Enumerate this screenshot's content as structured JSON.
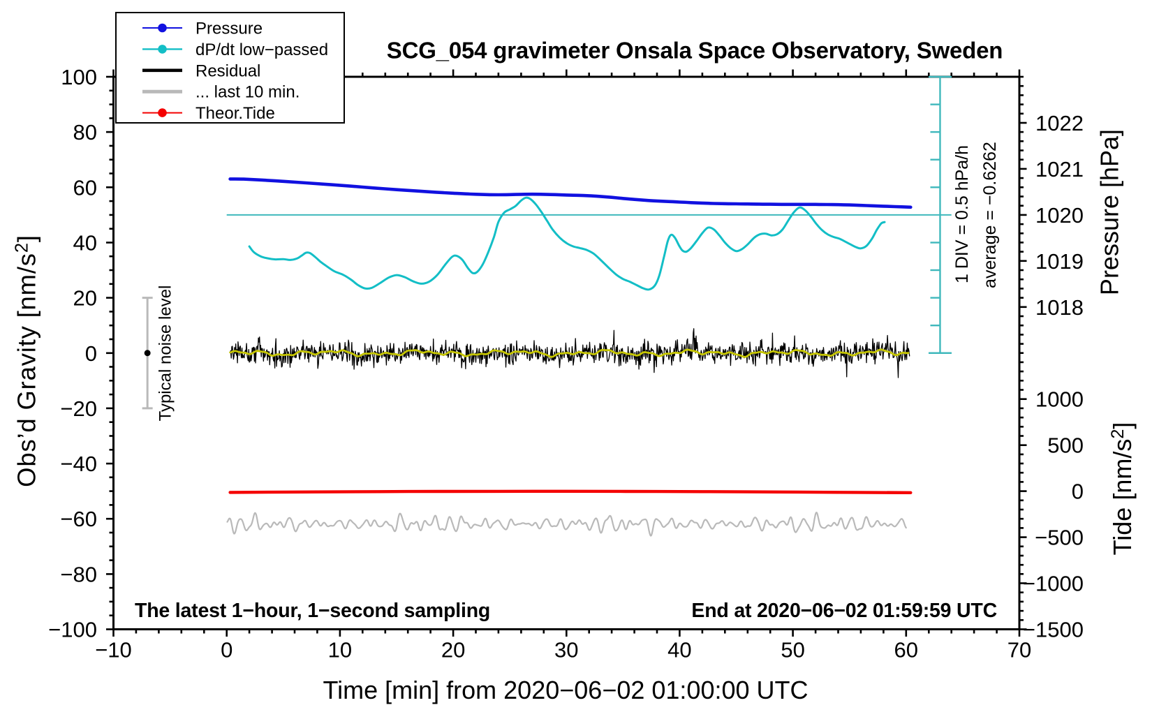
{
  "title": "SCG_054 gravimeter Onsala Space Observatory, Sweden",
  "chart_data": {
    "type": "line",
    "title": "SCG_054 gravimeter Onsala Space Observatory, Sweden",
    "xlabel": "Time [min] from 2020−06−02 01:00:00 UTC",
    "ylabel_left": "Obs’d Gravity [nm/s²]",
    "ylabel_right_top": "Pressure [hPa]",
    "ylabel_right_bottom": "Tide [nm/s²]",
    "x_axis": {
      "min": -10,
      "max": 70,
      "major": 10,
      "minor": 2,
      "tick_values": [
        -10,
        0,
        10,
        20,
        30,
        40,
        50,
        60,
        70
      ],
      "tick_labels": [
        "−10",
        "0",
        "10",
        "20",
        "30",
        "40",
        "50",
        "60",
        "70"
      ]
    },
    "y_axis": {
      "min": -100,
      "max": 100,
      "major": 20,
      "minor": 5,
      "tick_values": [
        100,
        80,
        60,
        40,
        20,
        0,
        -20,
        -40,
        -60,
        -80,
        -100
      ],
      "tick_labels": [
        "100",
        "80",
        "60",
        "40",
        "20",
        "0",
        "−20",
        "−40",
        "−60",
        "−80",
        "−100"
      ]
    },
    "pressure_axis": {
      "anchor_pressure": 1020,
      "anchor_gravity": 50,
      "gravity_per_hpa": 16.6667,
      "minor_gravity_step": 3.33333,
      "tick_values": [
        1022,
        1021,
        1020,
        1019,
        1018
      ],
      "tick_labels": [
        "1022",
        "1021",
        "1020",
        "1019",
        "1018"
      ]
    },
    "tide_axis": {
      "anchor_tide": 0,
      "anchor_gravity": -50,
      "gravity_per_500": 16.6667,
      "tick_values": [
        1000,
        500,
        0,
        -500,
        -1000,
        -1500
      ],
      "tick_labels": [
        "1000",
        "500",
        "0",
        "−500",
        "−1000",
        "−1500"
      ]
    },
    "annotations": {
      "sampling_note": "The latest 1−hour, 1−second sampling",
      "end_time": "End at 2020−06−02 01:59:59 UTC",
      "div_scale": "1 DIV = 0.5 hPa/h",
      "average": "average = −0.6262",
      "noise_label": "Typical noise level"
    },
    "series": {
      "pressure": {
        "name": "Pressure",
        "color": "#1111e0",
        "width": 4.6,
        "points": [
          [
            0.3,
            63.0
          ],
          [
            1.5,
            62.95
          ],
          [
            3,
            62.65
          ],
          [
            5,
            62.15
          ],
          [
            7,
            61.6
          ],
          [
            9,
            61.0
          ],
          [
            11,
            60.4
          ],
          [
            13,
            59.75
          ],
          [
            15,
            59.15
          ],
          [
            17,
            58.6
          ],
          [
            18.5,
            58.2
          ],
          [
            20,
            57.85
          ],
          [
            21.5,
            57.55
          ],
          [
            23,
            57.35
          ],
          [
            24,
            57.3
          ],
          [
            25,
            57.35
          ],
          [
            26,
            57.45
          ],
          [
            27,
            57.5
          ],
          [
            28,
            57.45
          ],
          [
            29,
            57.35
          ],
          [
            30,
            57.2
          ],
          [
            31,
            57.1
          ],
          [
            32,
            56.95
          ],
          [
            33,
            56.7
          ],
          [
            34,
            56.35
          ],
          [
            35,
            55.95
          ],
          [
            36,
            55.6
          ],
          [
            37,
            55.3
          ],
          [
            38,
            55.05
          ],
          [
            39,
            54.85
          ],
          [
            40,
            54.65
          ],
          [
            41,
            54.45
          ],
          [
            42,
            54.3
          ],
          [
            43,
            54.15
          ],
          [
            44,
            54.05
          ],
          [
            45,
            54.0
          ],
          [
            46,
            53.95
          ],
          [
            47,
            53.9
          ],
          [
            48,
            53.85
          ],
          [
            49,
            53.82
          ],
          [
            50,
            53.8
          ],
          [
            51,
            53.8
          ],
          [
            52,
            53.8
          ],
          [
            53,
            53.75
          ],
          [
            54,
            53.7
          ],
          [
            55,
            53.6
          ],
          [
            56,
            53.45
          ],
          [
            57,
            53.3
          ],
          [
            58,
            53.15
          ],
          [
            59,
            53.0
          ],
          [
            60.4,
            52.8
          ]
        ]
      },
      "dpdt": {
        "name": "dP/dt low−passed",
        "color": "#13bec6",
        "width": 3,
        "points": [
          [
            2.0,
            38.6
          ],
          [
            2.4,
            36.5
          ],
          [
            3.0,
            35.0
          ],
          [
            3.6,
            34.3
          ],
          [
            4.3,
            33.9
          ],
          [
            5.0,
            34.0
          ],
          [
            5.6,
            33.7
          ],
          [
            6.2,
            34.2
          ],
          [
            6.6,
            35.2
          ],
          [
            7.0,
            36.3
          ],
          [
            7.35,
            36.2
          ],
          [
            7.8,
            34.8
          ],
          [
            8.3,
            33.0
          ],
          [
            8.7,
            31.8
          ],
          [
            9.5,
            29.6
          ],
          [
            10.3,
            28.3
          ],
          [
            11.0,
            26.5
          ],
          [
            11.6,
            24.6
          ],
          [
            12.2,
            23.4
          ],
          [
            12.8,
            23.6
          ],
          [
            13.5,
            25.2
          ],
          [
            14.3,
            27.3
          ],
          [
            15.0,
            28.2
          ],
          [
            15.7,
            27.5
          ],
          [
            16.5,
            25.9
          ],
          [
            17.2,
            25.1
          ],
          [
            17.9,
            25.9
          ],
          [
            18.6,
            28.3
          ],
          [
            19.3,
            32.0
          ],
          [
            19.9,
            34.8
          ],
          [
            20.3,
            35.2
          ],
          [
            20.8,
            33.8
          ],
          [
            21.3,
            30.8
          ],
          [
            21.7,
            29.0
          ],
          [
            22.1,
            29.3
          ],
          [
            22.6,
            32.0
          ],
          [
            23.1,
            36.5
          ],
          [
            23.6,
            42.0
          ],
          [
            24.0,
            47.5
          ],
          [
            24.5,
            50.8
          ],
          [
            25.0,
            52.0
          ],
          [
            25.5,
            53.2
          ],
          [
            26.0,
            55.2
          ],
          [
            26.4,
            56.2
          ],
          [
            26.8,
            55.8
          ],
          [
            27.3,
            53.8
          ],
          [
            27.8,
            51.0
          ],
          [
            28.3,
            47.8
          ],
          [
            28.8,
            44.6
          ],
          [
            29.4,
            41.8
          ],
          [
            30.0,
            39.8
          ],
          [
            30.6,
            38.6
          ],
          [
            31.2,
            38.0
          ],
          [
            31.8,
            37.3
          ],
          [
            32.4,
            36.0
          ],
          [
            33.0,
            33.8
          ],
          [
            33.7,
            31.0
          ],
          [
            34.4,
            28.4
          ],
          [
            35.0,
            26.8
          ],
          [
            35.6,
            25.8
          ],
          [
            36.2,
            24.6
          ],
          [
            36.8,
            23.4
          ],
          [
            37.3,
            23.0
          ],
          [
            37.8,
            24.4
          ],
          [
            38.2,
            28.0
          ],
          [
            38.6,
            34.5
          ],
          [
            38.95,
            40.5
          ],
          [
            39.25,
            42.8
          ],
          [
            39.6,
            41.6
          ],
          [
            39.95,
            38.9
          ],
          [
            40.25,
            37.1
          ],
          [
            40.6,
            36.7
          ],
          [
            41.0,
            38.0
          ],
          [
            41.5,
            40.6
          ],
          [
            42.0,
            43.4
          ],
          [
            42.5,
            45.4
          ],
          [
            43.0,
            44.8
          ],
          [
            43.5,
            42.6
          ],
          [
            44.0,
            40.0
          ],
          [
            44.5,
            38.0
          ],
          [
            45.0,
            36.9
          ],
          [
            45.5,
            37.6
          ],
          [
            46.0,
            39.3
          ],
          [
            46.6,
            41.8
          ],
          [
            47.1,
            43.0
          ],
          [
            47.6,
            43.2
          ],
          [
            48.1,
            42.6
          ],
          [
            48.6,
            43.0
          ],
          [
            49.1,
            44.8
          ],
          [
            49.6,
            48.0
          ],
          [
            50.1,
            51.0
          ],
          [
            50.6,
            52.7
          ],
          [
            51.1,
            51.6
          ],
          [
            51.6,
            49.3
          ],
          [
            52.1,
            46.6
          ],
          [
            52.6,
            44.4
          ],
          [
            53.1,
            42.9
          ],
          [
            53.6,
            42.0
          ],
          [
            54.1,
            41.4
          ],
          [
            54.6,
            40.4
          ],
          [
            55.1,
            39.3
          ],
          [
            55.6,
            38.3
          ],
          [
            56.0,
            37.9
          ],
          [
            56.5,
            38.8
          ],
          [
            57.0,
            41.5
          ],
          [
            57.4,
            44.5
          ],
          [
            57.8,
            46.9
          ],
          [
            58.1,
            47.4
          ]
        ]
      },
      "dpdt_zero_line": {
        "gravity": 50,
        "t_start": 0,
        "t_end": 64.0,
        "color": "#3fb8bc",
        "width": 2
      },
      "residual": {
        "name": "Residual",
        "color": "#000000",
        "width": 1.3,
        "center": 0,
        "sigma": 2.1,
        "spike_prob": 0.02,
        "seed": 654321,
        "t_start": 0.3,
        "t_end": 60.3,
        "step": 0.05,
        "clamp": 9.5
      },
      "residual_mean": {
        "color": "#c6c600",
        "width": 2.8,
        "components": [
          [
            8.1,
            0.5,
            0.9
          ],
          [
            3.4,
            0.42,
            2.1
          ],
          [
            1.9,
            0.38,
            4.4
          ],
          [
            0.95,
            0.18,
            3.3
          ]
        ]
      },
      "last10": {
        "name": "... last 10 min.",
        "color": "#b9b9b9",
        "width": 2.2,
        "center": -61.9,
        "components": [
          [
            1.08,
            1.15,
            0.3
          ],
          [
            1.42,
            0.95,
            2.7
          ],
          [
            0.75,
            0.6,
            5.1
          ],
          [
            2.6,
            0.55,
            1.9
          ],
          [
            0.55,
            0.35,
            4.0
          ]
        ],
        "mod_period": 17,
        "mod_amp": 0.35,
        "t_start": 0.05,
        "t_end": 60.0,
        "step": 0.05
      },
      "tide": {
        "name": "Theor.Tide",
        "color": "#f40000",
        "width": 4.4,
        "points": [
          [
            0.3,
            -50.45
          ],
          [
            8,
            -50.28
          ],
          [
            16,
            -50.13
          ],
          [
            24,
            -50.06
          ],
          [
            30,
            -50.05
          ],
          [
            38,
            -50.12
          ],
          [
            46,
            -50.25
          ],
          [
            54,
            -50.42
          ],
          [
            60.4,
            -50.55
          ]
        ]
      },
      "noise_bar": {
        "t": -7,
        "g_min": -20,
        "g_max": 20,
        "color": "#b9b9b9",
        "dot_color": "#000000",
        "dot_g": 0,
        "dot_r": 4.5,
        "cap_halfwidth": 7.5,
        "width": 3
      },
      "div_bar": {
        "t": 63.0,
        "g_min": 0,
        "g_max": 100,
        "tick_step": 10,
        "tick_len": 14,
        "cap_halfwidth": 16.5,
        "color": "#3fb8bc",
        "width": 2.4
      }
    }
  },
  "legend": {
    "items": [
      {
        "label": "Pressure",
        "color": "#1111e0",
        "line_width": 2,
        "dot": true
      },
      {
        "label": "dP/dt low−passed",
        "color": "#13bec6",
        "line_width": 2.4,
        "dot": true
      },
      {
        "label": "Residual",
        "color": "#000000",
        "line_width": 4.6,
        "dot": false
      },
      {
        "label": "... last 10 min.",
        "color": "#b9b9b9",
        "line_width": 5,
        "dot": false
      },
      {
        "label": "Theor.Tide",
        "color": "#f40000",
        "line_width": 2,
        "dot": true
      }
    ]
  }
}
